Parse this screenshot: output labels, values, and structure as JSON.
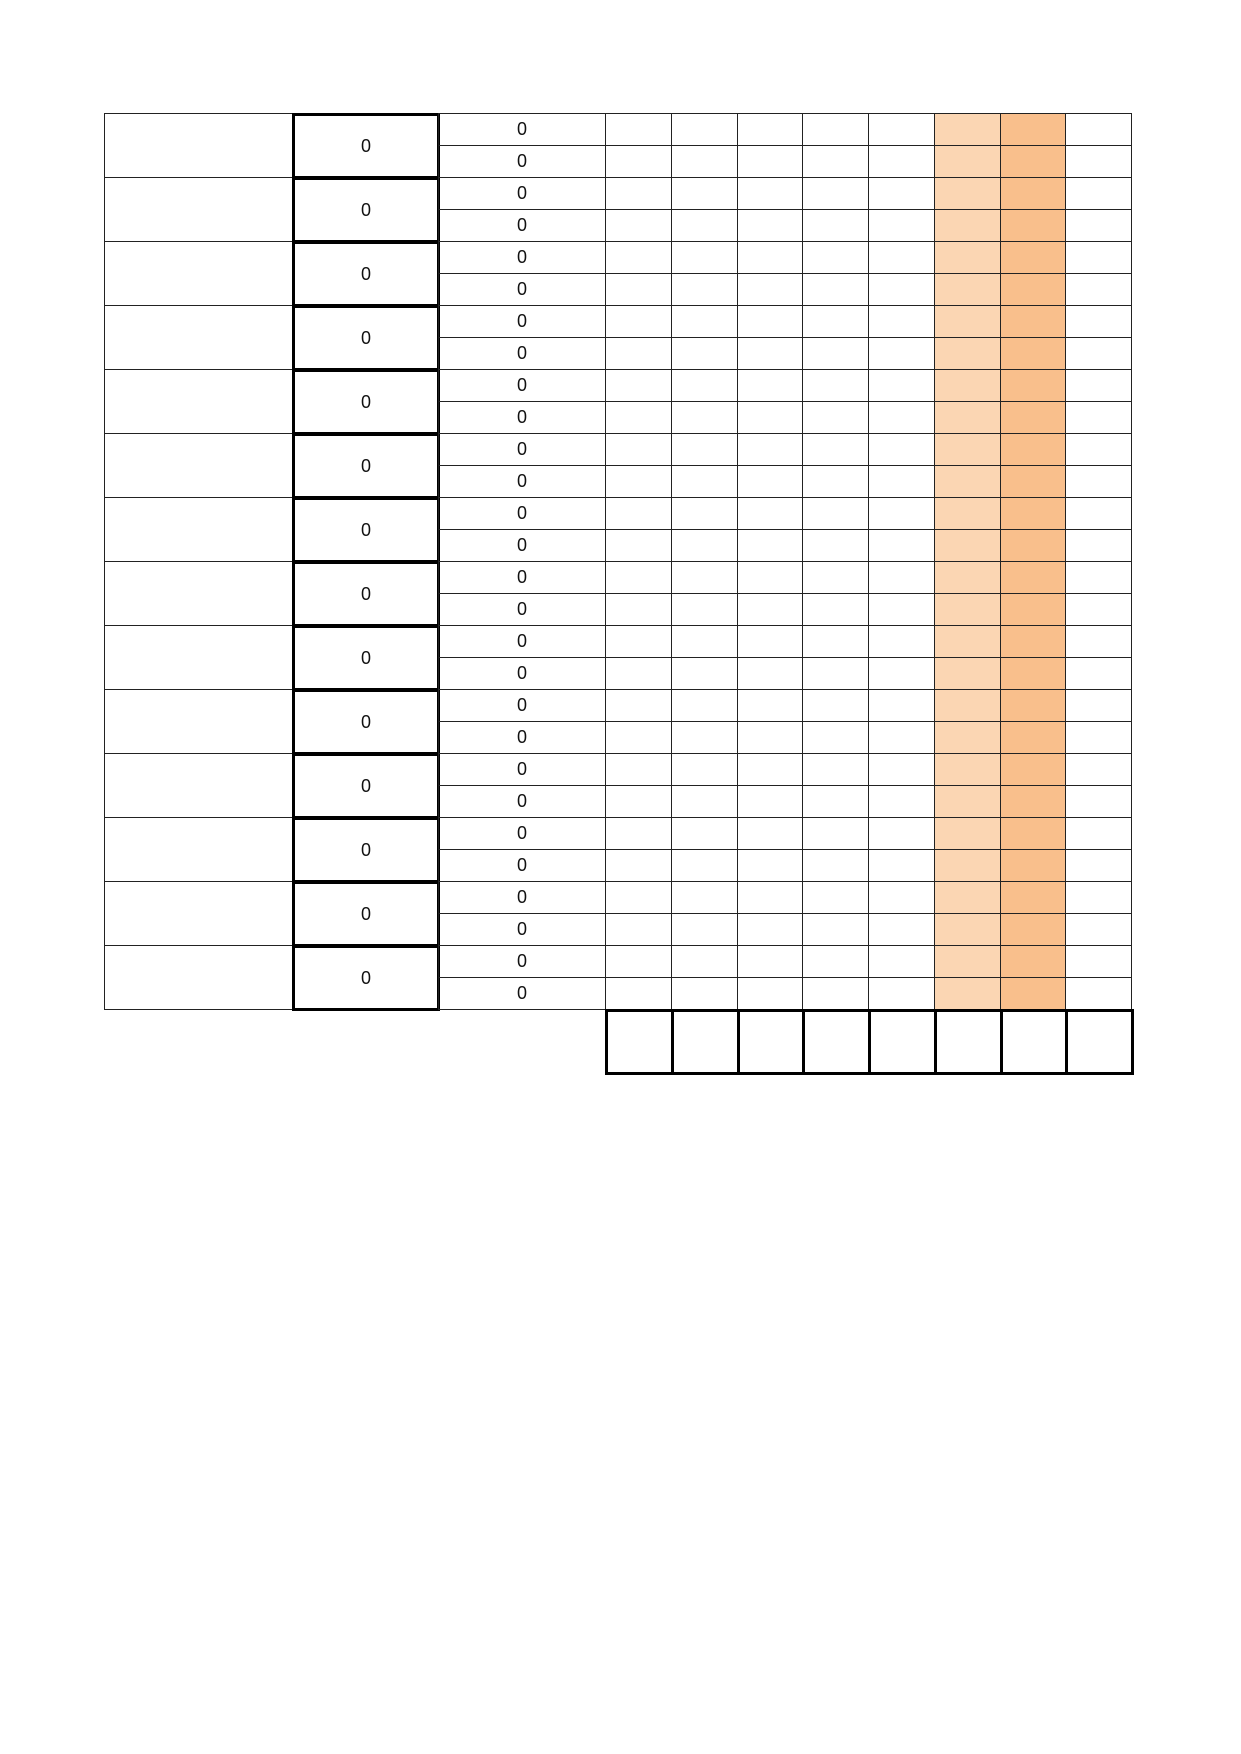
{
  "sheet": {
    "group_count": 14,
    "group_values": [
      "0",
      "0",
      "0",
      "0",
      "0",
      "0",
      "0",
      "0",
      "0",
      "0",
      "0",
      "0",
      "0",
      "0"
    ],
    "sub_values": [
      [
        "0",
        "0"
      ],
      [
        "0",
        "0"
      ],
      [
        "0",
        "0"
      ],
      [
        "0",
        "0"
      ],
      [
        "0",
        "0"
      ],
      [
        "0",
        "0"
      ],
      [
        "0",
        "0"
      ],
      [
        "0",
        "0"
      ],
      [
        "0",
        "0"
      ],
      [
        "0",
        "0"
      ],
      [
        "0",
        "0"
      ],
      [
        "0",
        "0"
      ],
      [
        "0",
        "0"
      ],
      [
        "0",
        "0"
      ]
    ],
    "grid_columns": 8,
    "highlight_columns": [
      6,
      7
    ],
    "colors": {
      "highlight_light": "#fbd6b3",
      "highlight_dark": "#f9bf8c",
      "border": "#222222"
    }
  }
}
